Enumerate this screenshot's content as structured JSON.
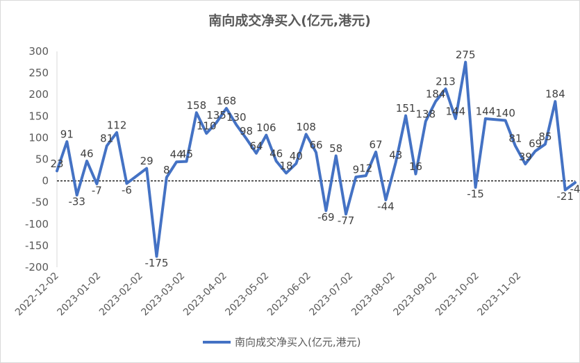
{
  "chart_data": {
    "type": "line",
    "title": "南向成交净买入(亿元,港元)",
    "xlabel": "",
    "ylabel": "",
    "ylim": [
      -200,
      300
    ],
    "yticks": [
      300,
      250,
      200,
      150,
      100,
      50,
      0,
      -50,
      -100,
      -150,
      -200
    ],
    "x_tick_labels": [
      "2022-12-02",
      "2023-01-02",
      "2023-02-02",
      "2023-03-02",
      "2023-04-02",
      "2023-05-02",
      "2023-06-02",
      "2023-07-02",
      "2023-08-02",
      "2023-09-02",
      "2023-10-02",
      "2023-11-02"
    ],
    "legend_position": "bottom",
    "line_color": "#4472C4",
    "zero_line": "dashed",
    "series": [
      {
        "name": "南向成交净买入(亿元,港元)",
        "values": [
          23,
          91,
          -33,
          46,
          -7,
          81,
          112,
          -6,
          null,
          29,
          -175,
          8,
          44,
          45,
          158,
          110,
          135,
          168,
          130,
          98,
          64,
          106,
          46,
          18,
          40,
          108,
          66,
          -69,
          58,
          -77,
          9,
          12,
          67,
          -44,
          43,
          151,
          16,
          138,
          184,
          213,
          144,
          275,
          -15,
          144,
          null,
          140,
          81,
          39,
          69,
          85,
          184,
          -21,
          -4
        ],
        "labels": [
          "23",
          "91",
          "-33",
          "46",
          "-7",
          "81",
          "112",
          "-6",
          "",
          "29",
          "-175",
          "8",
          "44",
          "45",
          "158",
          "110",
          "135",
          "168",
          "130",
          "98",
          "64",
          "106",
          "46",
          "18",
          "40",
          "108",
          "66",
          "-69",
          "58",
          "-77",
          "9",
          "12",
          "67",
          "-44",
          "43",
          "151",
          "16",
          "138",
          "184",
          "213",
          "144",
          "275",
          "-15",
          "144",
          "",
          "140",
          "81",
          "39",
          "69",
          "85",
          "184",
          "-21",
          "-4"
        ]
      }
    ]
  }
}
